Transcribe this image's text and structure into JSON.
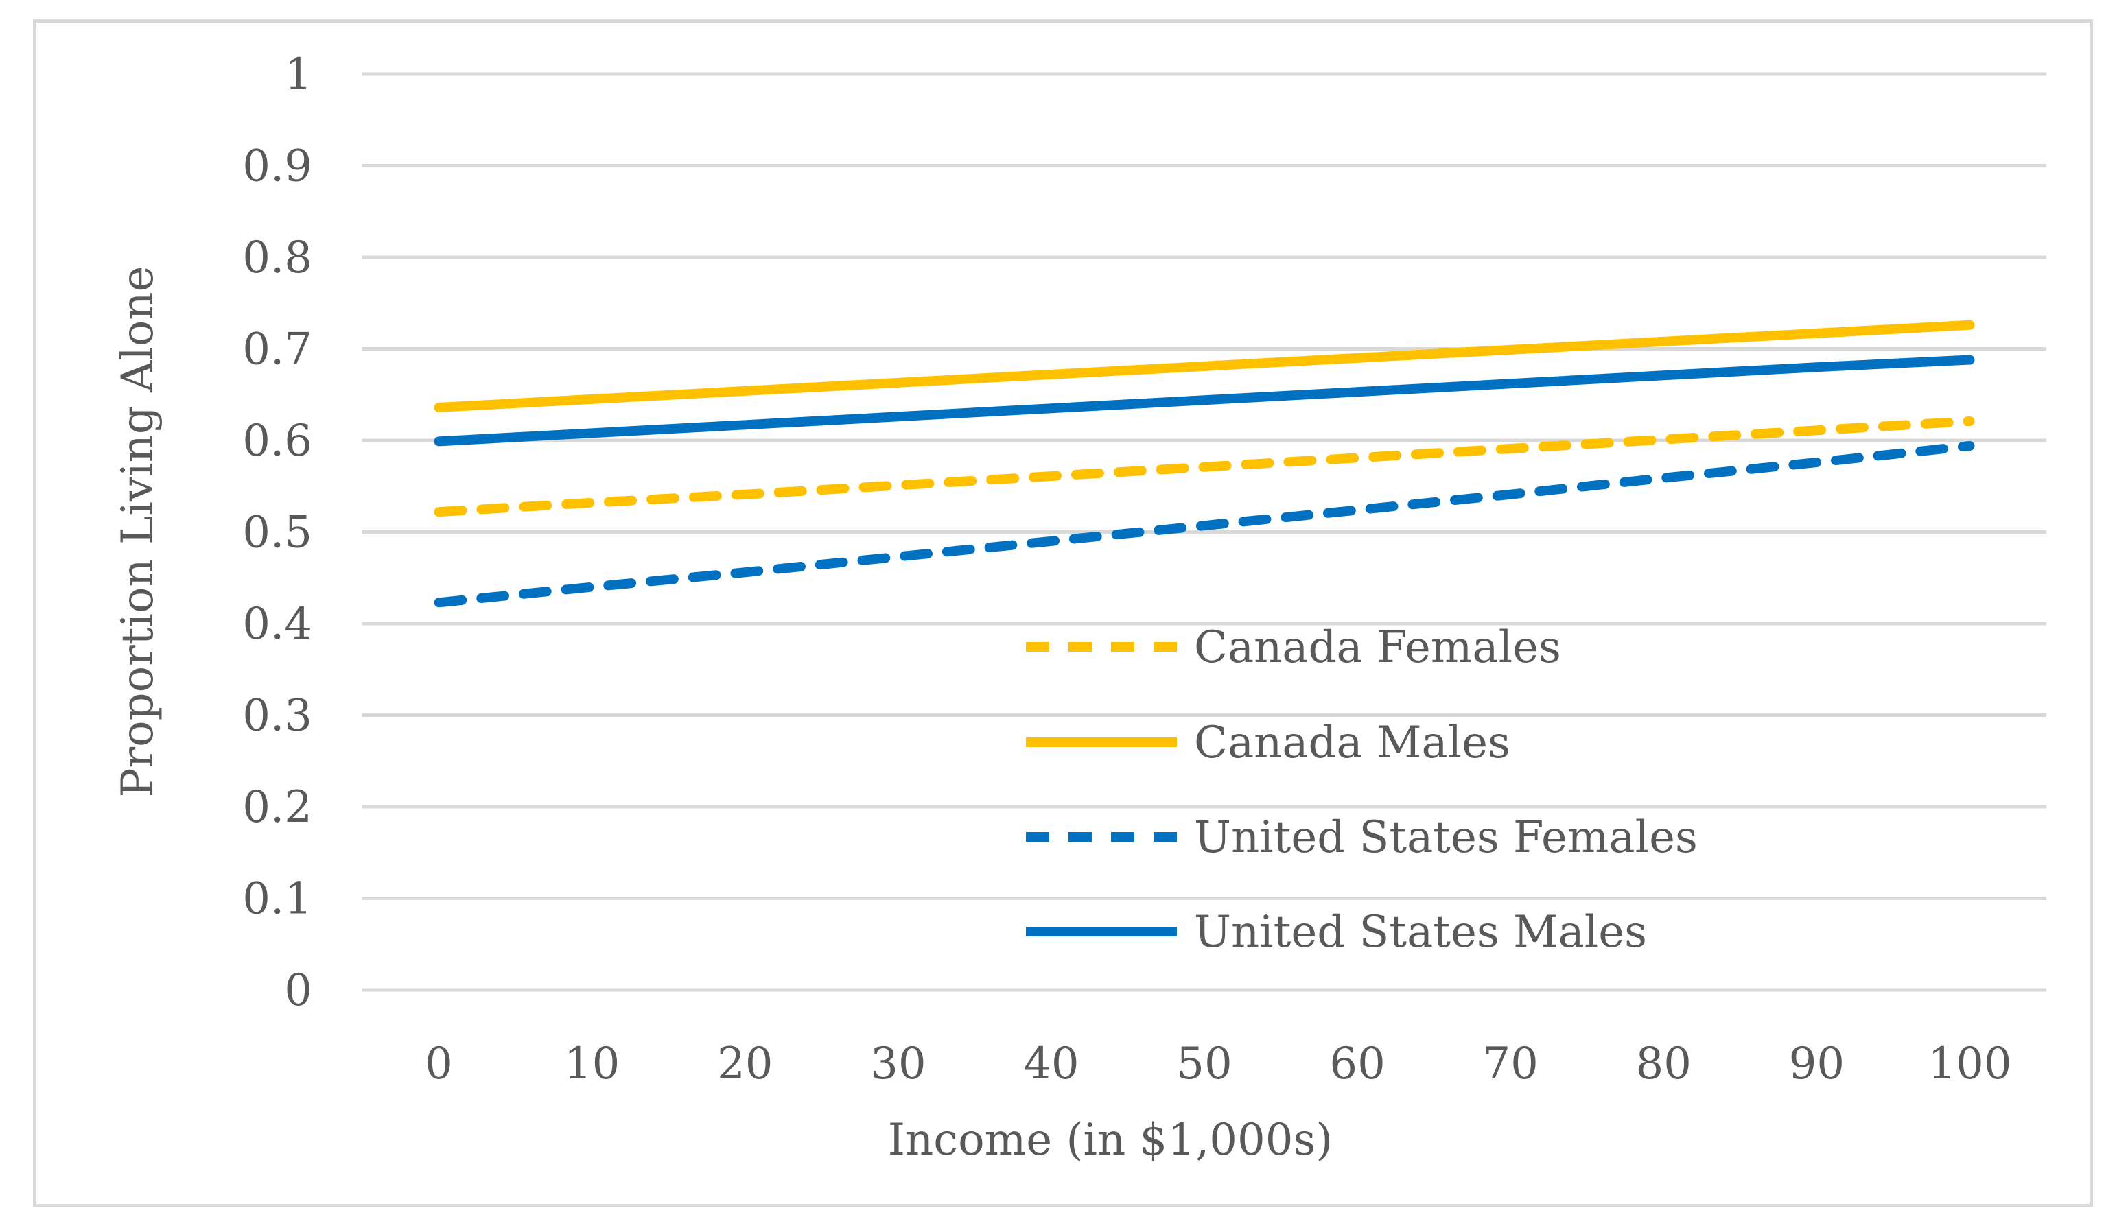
{
  "chart_data": {
    "type": "line",
    "title": "",
    "xlabel": "Income (in $1,000s)",
    "ylabel": "Proportion Living Alone",
    "x": [
      0,
      10,
      20,
      30,
      40,
      50,
      60,
      70,
      80,
      90,
      100
    ],
    "x_tick_labels": [
      "0",
      "10",
      "20",
      "30",
      "40",
      "50",
      "60",
      "70",
      "80",
      "90",
      "100"
    ],
    "y_tick_labels": [
      "0",
      "0.1",
      "0.2",
      "0.3",
      "0.4",
      "0.5",
      "0.6",
      "0.7",
      "0.8",
      "0.9",
      "1"
    ],
    "y_ticks": [
      0,
      0.1,
      0.2,
      0.3,
      0.4,
      0.5,
      0.6,
      0.7,
      0.8,
      0.9,
      1
    ],
    "ylim": [
      0,
      1
    ],
    "xlim": [
      -5,
      105
    ],
    "grid": true,
    "legend_position": "center-right inside plot",
    "series": [
      {
        "name": "Canada Females",
        "color": "#ffc000",
        "style": "dashed",
        "values": [
          0.522,
          0.532,
          0.541,
          0.551,
          0.561,
          0.571,
          0.581,
          0.591,
          0.601,
          0.611,
          0.621
        ]
      },
      {
        "name": "Canada Males",
        "color": "#ffc000",
        "style": "solid",
        "values": [
          0.636,
          0.645,
          0.654,
          0.663,
          0.672,
          0.681,
          0.69,
          0.699,
          0.708,
          0.717,
          0.726
        ]
      },
      {
        "name": "United States Females",
        "color": "#0070c0",
        "style": "dashed",
        "values": [
          0.423,
          0.44,
          0.456,
          0.473,
          0.49,
          0.507,
          0.524,
          0.541,
          0.559,
          0.576,
          0.594
        ]
      },
      {
        "name": "United States Males",
        "color": "#0070c0",
        "style": "solid",
        "values": [
          0.599,
          0.608,
          0.617,
          0.626,
          0.635,
          0.644,
          0.653,
          0.662,
          0.671,
          0.68,
          0.688
        ]
      }
    ]
  }
}
